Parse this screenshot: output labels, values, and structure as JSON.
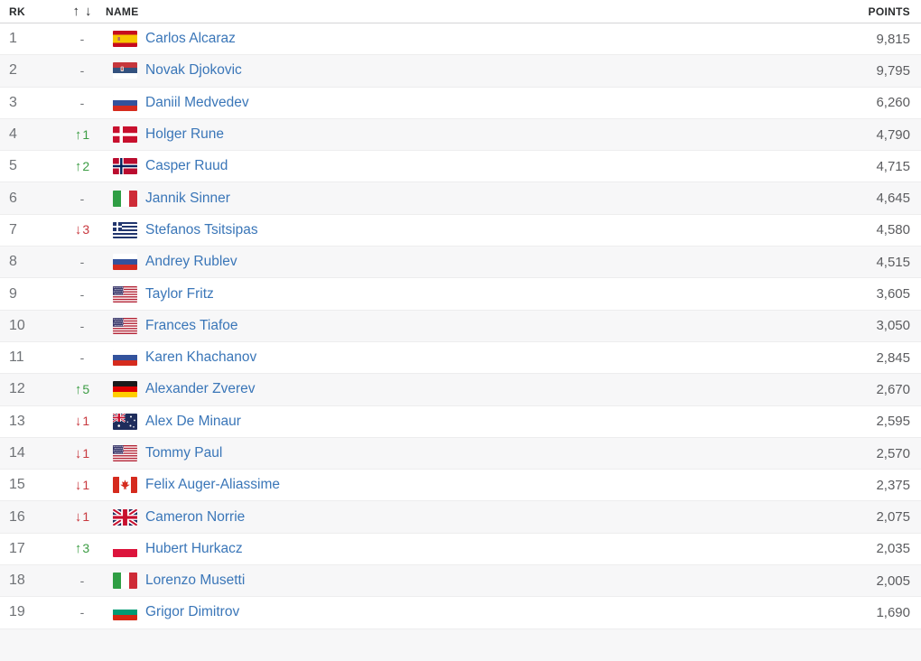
{
  "header": {
    "rank_label": "RK",
    "trend_up_icon": "↑",
    "trend_down_icon": "↓",
    "name_label": "NAME",
    "points_label": "POINTS"
  },
  "colors": {
    "link": "#3a76b8",
    "up": "#3b9c43",
    "down": "#c8383e",
    "row_alt": "#f7f7f8"
  },
  "rows": [
    {
      "rank": "1",
      "trend_dir": "none",
      "trend_value": "-",
      "country": "Spain",
      "flag": "esp",
      "name": "Carlos Alcaraz",
      "points": "9,815"
    },
    {
      "rank": "2",
      "trend_dir": "none",
      "trend_value": "-",
      "country": "Serbia",
      "flag": "srb",
      "name": "Novak Djokovic",
      "points": "9,795"
    },
    {
      "rank": "3",
      "trend_dir": "none",
      "trend_value": "-",
      "country": "Russia",
      "flag": "rus",
      "name": "Daniil Medvedev",
      "points": "6,260"
    },
    {
      "rank": "4",
      "trend_dir": "up",
      "trend_value": "1",
      "country": "Denmark",
      "flag": "den",
      "name": "Holger Rune",
      "points": "4,790"
    },
    {
      "rank": "5",
      "trend_dir": "up",
      "trend_value": "2",
      "country": "Norway",
      "flag": "nor",
      "name": "Casper Ruud",
      "points": "4,715"
    },
    {
      "rank": "6",
      "trend_dir": "none",
      "trend_value": "-",
      "country": "Italy",
      "flag": "ita",
      "name": "Jannik Sinner",
      "points": "4,645"
    },
    {
      "rank": "7",
      "trend_dir": "down",
      "trend_value": "3",
      "country": "Greece",
      "flag": "gre",
      "name": "Stefanos Tsitsipas",
      "points": "4,580"
    },
    {
      "rank": "8",
      "trend_dir": "none",
      "trend_value": "-",
      "country": "Russia",
      "flag": "rus",
      "name": "Andrey Rublev",
      "points": "4,515"
    },
    {
      "rank": "9",
      "trend_dir": "none",
      "trend_value": "-",
      "country": "USA",
      "flag": "usa",
      "name": "Taylor Fritz",
      "points": "3,605"
    },
    {
      "rank": "10",
      "trend_dir": "none",
      "trend_value": "-",
      "country": "USA",
      "flag": "usa",
      "name": "Frances Tiafoe",
      "points": "3,050"
    },
    {
      "rank": "11",
      "trend_dir": "none",
      "trend_value": "-",
      "country": "Russia",
      "flag": "rus",
      "name": "Karen Khachanov",
      "points": "2,845"
    },
    {
      "rank": "12",
      "trend_dir": "up",
      "trend_value": "5",
      "country": "Germany",
      "flag": "ger",
      "name": "Alexander Zverev",
      "points": "2,670"
    },
    {
      "rank": "13",
      "trend_dir": "down",
      "trend_value": "1",
      "country": "Australia",
      "flag": "aus",
      "name": "Alex De Minaur",
      "points": "2,595"
    },
    {
      "rank": "14",
      "trend_dir": "down",
      "trend_value": "1",
      "country": "USA",
      "flag": "usa",
      "name": "Tommy Paul",
      "points": "2,570"
    },
    {
      "rank": "15",
      "trend_dir": "down",
      "trend_value": "1",
      "country": "Canada",
      "flag": "can",
      "name": "Felix Auger-Aliassime",
      "points": "2,375"
    },
    {
      "rank": "16",
      "trend_dir": "down",
      "trend_value": "1",
      "country": "Great Britain",
      "flag": "gbr",
      "name": "Cameron Norrie",
      "points": "2,075"
    },
    {
      "rank": "17",
      "trend_dir": "up",
      "trend_value": "3",
      "country": "Poland",
      "flag": "pol",
      "name": "Hubert Hurkacz",
      "points": "2,035"
    },
    {
      "rank": "18",
      "trend_dir": "none",
      "trend_value": "-",
      "country": "Italy",
      "flag": "ita",
      "name": "Lorenzo Musetti",
      "points": "2,005"
    },
    {
      "rank": "19",
      "trend_dir": "none",
      "trend_value": "-",
      "country": "Bulgaria",
      "flag": "bul",
      "name": "Grigor Dimitrov",
      "points": "1,690"
    }
  ]
}
